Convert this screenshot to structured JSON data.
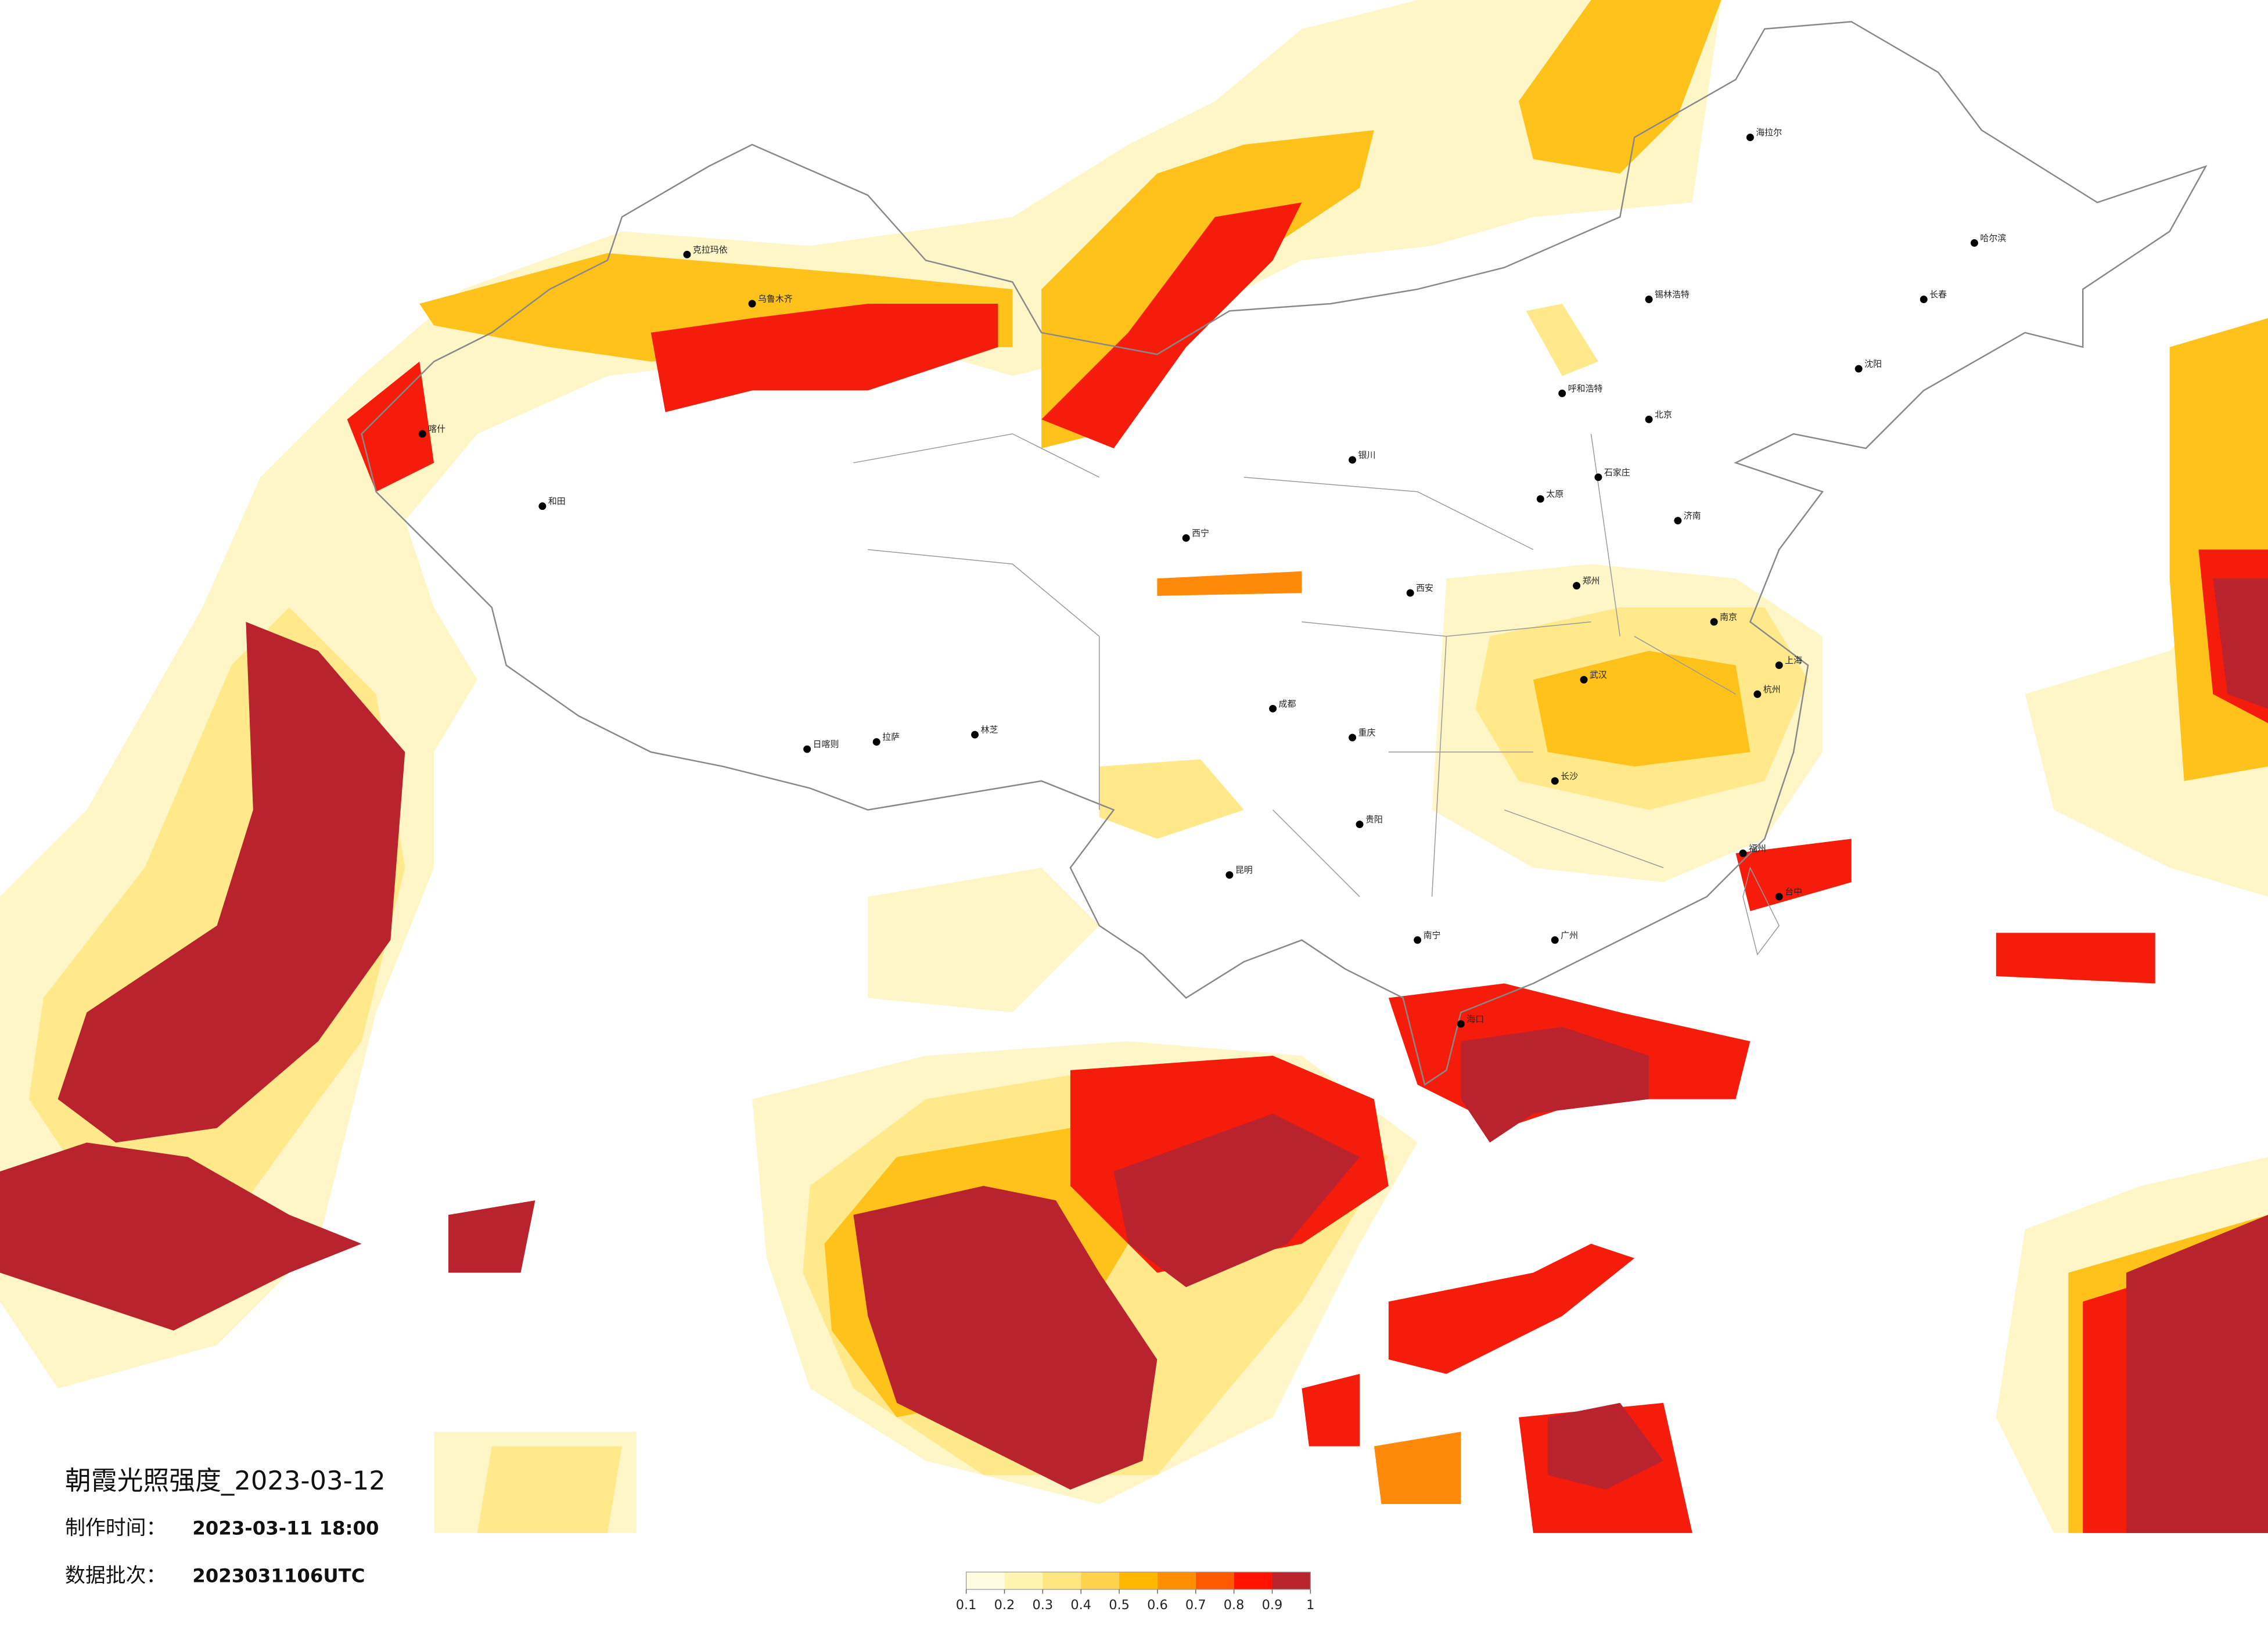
{
  "header": {
    "title": "朝霞光照强度_2023-03-12",
    "made_label": "制作时间：",
    "made_value": "2023-03-11 18:00",
    "batch_label": "数据批次：",
    "batch_value": "2023031106UTC"
  },
  "legend": {
    "ticks": [
      0.1,
      0.2,
      0.3,
      0.4,
      0.5,
      0.6,
      0.7,
      0.8,
      0.9,
      1
    ],
    "colors": [
      "#fffbe0",
      "#fff4b0",
      "#ffe680",
      "#ffd24d",
      "#ffb700",
      "#ff8f00",
      "#ff5a00",
      "#ff1300",
      "#b8232d"
    ]
  },
  "cities": [
    {
      "name": "克拉玛依"
    },
    {
      "name": "乌鲁木齐"
    },
    {
      "name": "喀什"
    },
    {
      "name": "和田"
    },
    {
      "name": "日喀则"
    },
    {
      "name": "拉萨"
    },
    {
      "name": "林芝"
    },
    {
      "name": "西宁"
    },
    {
      "name": "银川"
    },
    {
      "name": "呼和浩特"
    },
    {
      "name": "锡林浩特"
    },
    {
      "name": "海拉尔"
    },
    {
      "name": "哈尔滨"
    },
    {
      "name": "长春"
    },
    {
      "name": "沈阳"
    },
    {
      "name": "北京"
    },
    {
      "name": "石家庄"
    },
    {
      "name": "太原"
    },
    {
      "name": "济南"
    },
    {
      "name": "郑州"
    },
    {
      "name": "西安"
    },
    {
      "name": "南京"
    },
    {
      "name": "上海"
    },
    {
      "name": "杭州"
    },
    {
      "name": "武汉"
    },
    {
      "name": "成都"
    },
    {
      "name": "重庆"
    },
    {
      "name": "长沙"
    },
    {
      "name": "贵阳"
    },
    {
      "name": "昆明"
    },
    {
      "name": "南宁"
    },
    {
      "name": "广州"
    },
    {
      "name": "福州"
    },
    {
      "name": "台中"
    },
    {
      "name": "海口"
    }
  ]
}
